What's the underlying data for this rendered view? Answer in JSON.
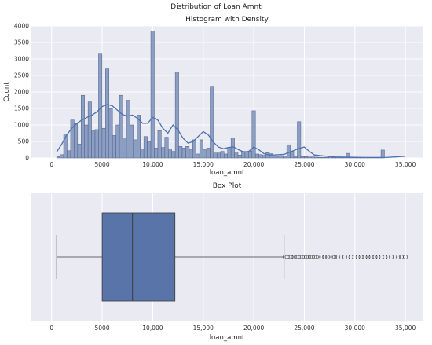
{
  "figure": {
    "suptitle": "Distribution of Loan Amnt",
    "colors": {
      "panel_bg": "#eaeaf2",
      "grid": "#ffffff",
      "bar_fill": "#8c9ec1",
      "bar_edge": "#4c5f8a",
      "kde": "#4c72b0",
      "box_fill": "#5874a8",
      "box_edge": "#3a3a3a"
    }
  },
  "chart_data": [
    {
      "type": "bar",
      "title": "Histogram with Density",
      "xlabel": "loan_amnt",
      "ylabel": "Count",
      "xlim": [
        -2000,
        36700
      ],
      "ylim": [
        0,
        4000
      ],
      "xticks": [
        0,
        5000,
        10000,
        15000,
        20000,
        25000,
        30000,
        35000
      ],
      "xtick_labels": [
        "0",
        "5000",
        "10,000",
        "15,000",
        "20,000",
        "25,000",
        "30,000",
        "35,000"
      ],
      "yticks": [
        0,
        500,
        1000,
        1500,
        2000,
        2500,
        3000,
        3500,
        4000
      ],
      "ytick_labels": [
        "0",
        "500",
        "1000",
        "1500",
        "2000",
        "2500",
        "3000",
        "3500",
        "4000"
      ],
      "grid": true,
      "bin_start": 500,
      "bin_width": 345,
      "counts": [
        40,
        100,
        700,
        220,
        1150,
        1050,
        420,
        1900,
        1000,
        1700,
        820,
        860,
        3150,
        900,
        2700,
        1500,
        680,
        1000,
        1900,
        580,
        1750,
        1000,
        550,
        1300,
        280,
        650,
        500,
        3850,
        300,
        830,
        320,
        630,
        280,
        200,
        2600,
        350,
        300,
        350,
        250,
        550,
        120,
        550,
        250,
        300,
        2150,
        150,
        150,
        200,
        120,
        320,
        600,
        180,
        90,
        200,
        150,
        210,
        1430,
        120,
        100,
        80,
        160,
        130,
        60,
        50,
        70,
        60,
        400,
        200,
        50,
        1100,
        40,
        40,
        30,
        30,
        25,
        20,
        20,
        20,
        40,
        20,
        30,
        20,
        20,
        140,
        30,
        20,
        20,
        20,
        20,
        20,
        20,
        20,
        20,
        240
      ],
      "density": {
        "x": [
          500,
          1000,
          1500,
          2000,
          2500,
          3000,
          3500,
          4000,
          4500,
          5000,
          5500,
          6000,
          6500,
          7000,
          7500,
          8000,
          8500,
          9000,
          9500,
          10000,
          10500,
          11000,
          11500,
          12000,
          12500,
          13000,
          13500,
          14000,
          14500,
          15000,
          15500,
          16000,
          16500,
          17000,
          17500,
          18000,
          18500,
          19000,
          19500,
          20000,
          20500,
          21000,
          21500,
          22000,
          22500,
          23000,
          23500,
          24000,
          24500,
          25000,
          25500,
          26000,
          27000,
          28000,
          29000,
          30000,
          31000,
          32000,
          33000,
          34000,
          35000
        ],
        "y": [
          180,
          420,
          700,
          900,
          1050,
          1150,
          1230,
          1300,
          1400,
          1560,
          1620,
          1580,
          1450,
          1320,
          1270,
          1300,
          1200,
          1050,
          1050,
          1230,
          1150,
          900,
          750,
          1000,
          850,
          600,
          450,
          500,
          650,
          800,
          700,
          480,
          330,
          280,
          320,
          330,
          250,
          180,
          200,
          330,
          250,
          130,
          90,
          90,
          100,
          110,
          170,
          230,
          290,
          330,
          200,
          90,
          60,
          30,
          25,
          20,
          15,
          15,
          15,
          30,
          50
        ]
      }
    },
    {
      "type": "box",
      "title": "Box Plot",
      "xlabel": "loan_amnt",
      "xlim": [
        -2000,
        36700
      ],
      "xticks": [
        0,
        5000,
        10000,
        15000,
        20000,
        25000,
        30000,
        35000
      ],
      "xtick_labels": [
        "0",
        "5000",
        "10,000",
        "15,000",
        "20,000",
        "25,000",
        "30,000",
        "35,000"
      ],
      "grid": true,
      "whisker_low": 500,
      "q1": 5000,
      "median": 8000,
      "q3": 12200,
      "whisker_high": 23000,
      "outliers": [
        23100,
        23300,
        23500,
        23700,
        23900,
        24000,
        24200,
        24400,
        24600,
        24800,
        25000,
        25200,
        25400,
        25600,
        25800,
        26000,
        26200,
        26400,
        26700,
        27000,
        27300,
        27500,
        27800,
        28000,
        28300,
        28600,
        29000,
        29300,
        29600,
        30000,
        30300,
        30600,
        31000,
        31300,
        31600,
        32000,
        32300,
        32600,
        33000,
        33300,
        33600,
        34000,
        34300,
        34600,
        35000
      ]
    }
  ]
}
